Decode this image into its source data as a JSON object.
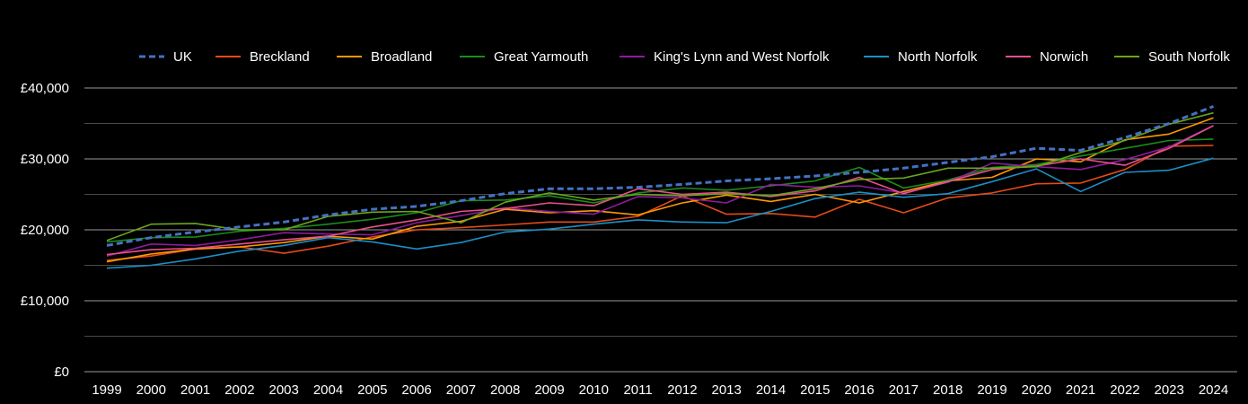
{
  "chart_data": {
    "type": "line",
    "title": "",
    "xlabel": "",
    "ylabel": "",
    "ylim": [
      0,
      40000
    ],
    "y_ticks": [
      "£0",
      "£10,000",
      "£20,000",
      "£30,000",
      "£40,000"
    ],
    "grid": true,
    "legend_position": "top",
    "background": "#000000",
    "categories": [
      "1999",
      "2000",
      "2001",
      "2002",
      "2003",
      "2004",
      "2005",
      "2006",
      "2007",
      "2008",
      "2009",
      "2010",
      "2011",
      "2012",
      "2013",
      "2014",
      "2015",
      "2016",
      "2017",
      "2018",
      "2019",
      "2020",
      "2021",
      "2022",
      "2023",
      "2024"
    ],
    "series": [
      {
        "name": "UK",
        "color": "#4472c4",
        "dashed": true,
        "values": [
          17800,
          18900,
          19700,
          20400,
          21100,
          22100,
          22900,
          23300,
          24100,
          25100,
          25800,
          25800,
          26000,
          26400,
          26900,
          27200,
          27600,
          28100,
          28700,
          29500,
          30300,
          31500,
          31200,
          33000,
          35000,
          37400
        ]
      },
      {
        "name": "Breckland",
        "color": "#e64a19",
        "dashed": false,
        "values": [
          15700,
          16300,
          17300,
          17600,
          16700,
          17700,
          19000,
          20000,
          20300,
          20700,
          21100,
          21100,
          21900,
          24800,
          22200,
          22300,
          21800,
          24300,
          22400,
          24500,
          25200,
          26500,
          26600,
          28500,
          31800,
          31900
        ]
      },
      {
        "name": "Broadland",
        "color": "#ff9800",
        "dashed": false,
        "values": [
          15500,
          16600,
          17300,
          17600,
          18200,
          19100,
          18700,
          20500,
          21200,
          22900,
          22400,
          22700,
          22100,
          23800,
          24900,
          24000,
          25000,
          23800,
          25400,
          26900,
          27400,
          30000,
          29600,
          32700,
          33500,
          35800
        ]
      },
      {
        "name": "Great Yarmouth",
        "color": "#1b8c1b",
        "dashed": false,
        "values": [
          18300,
          18900,
          19000,
          19800,
          20200,
          20800,
          21500,
          22400,
          24100,
          24200,
          24800,
          23800,
          25200,
          25900,
          25600,
          26200,
          26900,
          28800,
          25900,
          27000,
          28800,
          29200,
          30400,
          31500,
          32600,
          32800
        ]
      },
      {
        "name": "King's Lynn and West Norfolk",
        "color": "#8e1b9e",
        "dashed": false,
        "values": [
          16300,
          18000,
          17800,
          18600,
          19600,
          19400,
          19300,
          21000,
          22000,
          23100,
          22600,
          22200,
          24700,
          24500,
          23800,
          26400,
          26000,
          26200,
          25200,
          26700,
          29400,
          28900,
          28500,
          29900,
          31700,
          34700
        ]
      },
      {
        "name": "North Norfolk",
        "color": "#1b8fc7",
        "dashed": false,
        "values": [
          14600,
          15000,
          15900,
          17000,
          17800,
          18900,
          18300,
          17300,
          18200,
          19700,
          20100,
          20800,
          21400,
          21100,
          21000,
          22600,
          24400,
          25300,
          24600,
          25100,
          26800,
          28600,
          25400,
          28100,
          28400,
          30100
        ]
      },
      {
        "name": "Norwich",
        "color": "#e8508a",
        "dashed": false,
        "values": [
          16500,
          17200,
          17400,
          18000,
          18600,
          19100,
          20400,
          21400,
          22600,
          23000,
          23800,
          23400,
          25800,
          25000,
          25300,
          24700,
          25500,
          27400,
          25100,
          26800,
          28500,
          29000,
          30000,
          29100,
          31500,
          34700
        ]
      },
      {
        "name": "South Norfolk",
        "color": "#6aa61b",
        "dashed": false,
        "values": [
          18500,
          20800,
          20900,
          20000,
          20000,
          21900,
          22500,
          22600,
          21000,
          23900,
          25200,
          24200,
          25000,
          24800,
          25100,
          24800,
          25800,
          27100,
          27300,
          28700,
          28700,
          28900,
          30900,
          32600,
          34900,
          36500
        ]
      }
    ]
  }
}
